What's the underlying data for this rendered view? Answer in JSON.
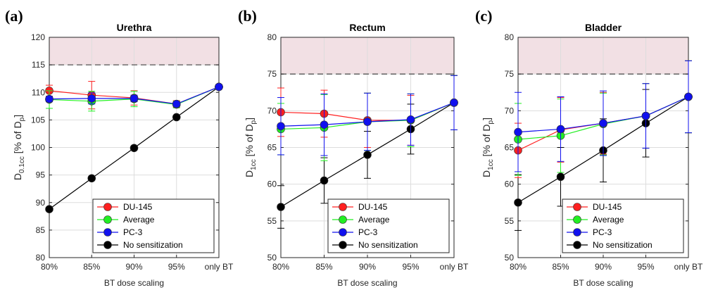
{
  "chart_data": [
    {
      "type": "line",
      "panel_label": "(a)",
      "title": "Urethra",
      "xlabel": "BT dose scaling",
      "ylabel": {
        "main": "D",
        "sub": "0.1cc",
        "mid": " [% of D",
        "sub2": "p",
        "end": "]"
      },
      "categories": [
        "80%",
        "85%",
        "90%",
        "95%",
        "only BT"
      ],
      "ylim": [
        80,
        120
      ],
      "yticks": [
        80,
        85,
        90,
        95,
        100,
        105,
        110,
        115,
        120
      ],
      "threshold": 115,
      "series": [
        {
          "name": "DU-145",
          "color": "#ff2020",
          "values": [
            110.3,
            109.5,
            109.0,
            107.9,
            111.0
          ],
          "err": [
            1.0,
            2.5,
            1.3,
            0.6,
            0.4
          ]
        },
        {
          "name": "Average",
          "color": "#22ee22",
          "values": [
            108.7,
            108.4,
            108.8,
            107.8,
            111.0
          ],
          "err": [
            1.6,
            1.8,
            1.4,
            0.6,
            0.4
          ]
        },
        {
          "name": "PC-3",
          "color": "#1010ee",
          "values": [
            108.8,
            108.9,
            108.9,
            107.9,
            111.0
          ],
          "err": [
            0.5,
            1.0,
            0.6,
            0.4,
            0.4
          ]
        },
        {
          "name": "No sensitization",
          "color": "#000000",
          "values": [
            88.8,
            94.4,
            99.9,
            105.5,
            111.0
          ],
          "err": [
            0,
            0,
            0,
            0,
            0
          ]
        }
      ]
    },
    {
      "type": "line",
      "panel_label": "(b)",
      "title": "Rectum",
      "xlabel": "BT dose scaling",
      "ylabel": {
        "main": "D",
        "sub": "1cc",
        "mid": " [% of D",
        "sub2": "p",
        "end": "]"
      },
      "categories": [
        "80%",
        "85%",
        "90%",
        "95%",
        "only BT"
      ],
      "ylim": [
        50,
        80
      ],
      "yticks": [
        50,
        55,
        60,
        65,
        70,
        75,
        80
      ],
      "threshold": 75,
      "series": [
        {
          "name": "DU-145",
          "color": "#ff2020",
          "values": [
            69.8,
            69.6,
            68.7,
            68.7,
            71.1
          ],
          "err": [
            3.3,
            3.2,
            3.7,
            3.4,
            3.7
          ]
        },
        {
          "name": "Average",
          "color": "#22ee22",
          "values": [
            67.5,
            67.7,
            68.5,
            68.7,
            71.1
          ],
          "err": [
            3.5,
            4.5,
            3.9,
            3.6,
            3.7
          ]
        },
        {
          "name": "PC-3",
          "color": "#1010ee",
          "values": [
            67.9,
            68.1,
            68.5,
            68.8,
            71.1
          ],
          "err": [
            3.9,
            4.2,
            3.9,
            3.5,
            3.7
          ]
        },
        {
          "name": "No sensitization",
          "color": "#000000",
          "values": [
            56.9,
            60.5,
            64.0,
            67.5,
            71.1
          ],
          "err": [
            2.9,
            3.1,
            3.2,
            3.4,
            3.7
          ]
        }
      ]
    },
    {
      "type": "line",
      "panel_label": "(c)",
      "title": "Bladder",
      "xlabel": "BT dose scaling",
      "ylabel": {
        "main": "D",
        "sub": "1cc",
        "mid": " [% of D",
        "sub2": "p",
        "end": "]"
      },
      "categories": [
        "80%",
        "85%",
        "90%",
        "95%",
        "only BT"
      ],
      "ylim": [
        50,
        80
      ],
      "yticks": [
        50,
        55,
        60,
        65,
        70,
        75,
        80
      ],
      "threshold": 75,
      "series": [
        {
          "name": "DU-145",
          "color": "#ff2020",
          "values": [
            64.6,
            67.4,
            68.3,
            69.3,
            71.9
          ],
          "err": [
            3.7,
            4.4,
            4.2,
            4.4,
            4.9
          ]
        },
        {
          "name": "Average",
          "color": "#22ee22",
          "values": [
            66.1,
            66.6,
            68.2,
            69.3,
            71.9
          ],
          "err": [
            4.9,
            5.0,
            4.2,
            4.4,
            4.9
          ]
        },
        {
          "name": "PC-3",
          "color": "#1010ee",
          "values": [
            67.1,
            67.5,
            68.3,
            69.3,
            71.9
          ],
          "err": [
            5.4,
            4.4,
            4.4,
            4.4,
            4.9
          ]
        },
        {
          "name": "No sensitization",
          "color": "#000000",
          "values": [
            57.5,
            61.0,
            64.6,
            68.3,
            71.9
          ],
          "err": [
            3.8,
            4.0,
            4.3,
            4.6,
            4.9
          ]
        }
      ]
    }
  ]
}
